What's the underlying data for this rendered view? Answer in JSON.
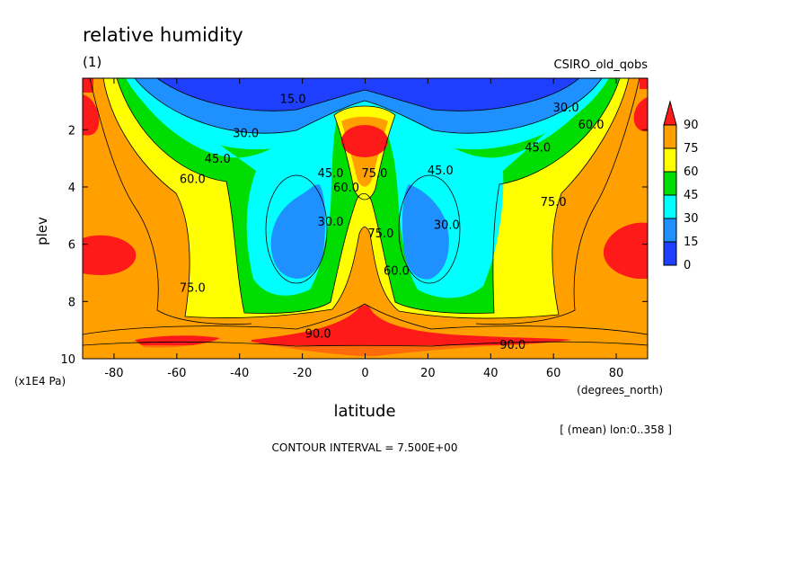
{
  "chart_data": {
    "type": "heatmap",
    "title": "relative humidity",
    "subtitle": "(1)",
    "dataset": "CSIRO_old_qobs",
    "xlabel": "latitude",
    "xunits": "(degrees_north)",
    "ylabel": "plev",
    "yunits": "(x1E4 Pa)",
    "xlim": [
      -90,
      90
    ],
    "ylim": [
      10,
      0.2
    ],
    "x_ticks": [
      "-80",
      "-60",
      "-40",
      "-20",
      "0",
      "20",
      "40",
      "60",
      "80"
    ],
    "y_ticks": [
      "2",
      "4",
      "6",
      "8",
      "10"
    ],
    "region_note": "[ (mean) lon:0..358 ]",
    "contour_interval_text": "CONTOUR INTERVAL = 7.500E+00",
    "legend": {
      "levels": [
        "90",
        "75",
        "60",
        "45",
        "30",
        "15",
        "0"
      ],
      "colors": [
        "#ff1a1a",
        "#ffa000",
        "#ffff00",
        "#00dd00",
        "#00ffff",
        "#1e90ff",
        "#1f3fff"
      ]
    },
    "contour_labels": [
      {
        "text": "15.0",
        "lat": -23,
        "plev": 0.9
      },
      {
        "text": "30.0",
        "lat": -38,
        "plev": 2.1
      },
      {
        "text": "45.0",
        "lat": -47,
        "plev": 3.0
      },
      {
        "text": "60.0",
        "lat": -55,
        "plev": 3.7
      },
      {
        "text": "75.0",
        "lat": -55,
        "plev": 7.5
      },
      {
        "text": "45.0",
        "lat": -11,
        "plev": 3.5
      },
      {
        "text": "30.0",
        "lat": -11,
        "plev": 5.2
      },
      {
        "text": "60.0",
        "lat": -6,
        "plev": 4.0
      },
      {
        "text": "75.0",
        "lat": 3,
        "plev": 3.5
      },
      {
        "text": "75.0",
        "lat": 5,
        "plev": 5.6
      },
      {
        "text": "60.0",
        "lat": 10,
        "plev": 6.9
      },
      {
        "text": "45.0",
        "lat": 24,
        "plev": 3.4
      },
      {
        "text": "30.0",
        "lat": 26,
        "plev": 5.3
      },
      {
        "text": "45.0",
        "lat": 55,
        "plev": 2.6
      },
      {
        "text": "30.0",
        "lat": 64,
        "plev": 1.2
      },
      {
        "text": "60.0",
        "lat": 72,
        "plev": 1.8
      },
      {
        "text": "75.0",
        "lat": 60,
        "plev": 4.5
      },
      {
        "text": "90.0",
        "lat": -15,
        "plev": 9.1
      },
      {
        "text": "90.0",
        "lat": 47,
        "plev": 9.5
      }
    ]
  }
}
